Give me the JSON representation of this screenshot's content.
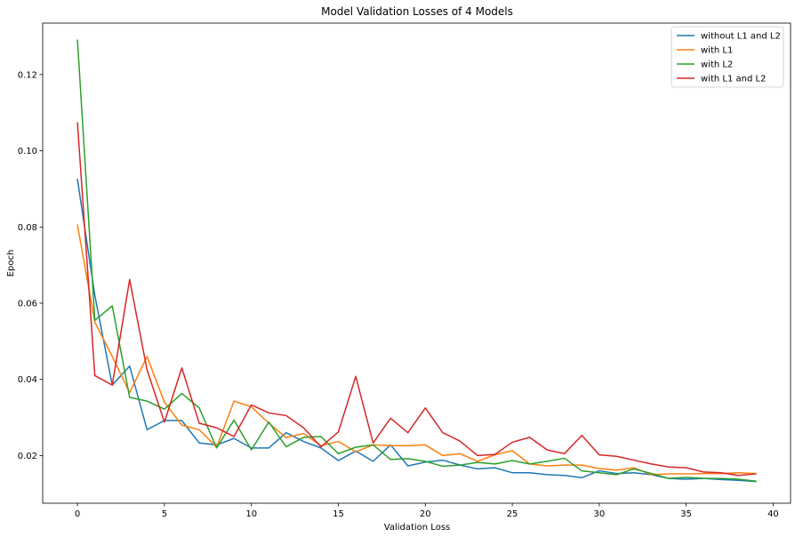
{
  "chart_data": {
    "type": "line",
    "title": "Model Validation Losses of 4 Models",
    "xlabel": "Validation Loss",
    "ylabel": "Epoch",
    "xlim": [
      -2,
      41
    ],
    "ylim": [
      0.0075,
      0.1335
    ],
    "xticks": [
      0,
      5,
      10,
      15,
      20,
      25,
      30,
      35,
      40
    ],
    "yticks": [
      0.02,
      0.04,
      0.06,
      0.08,
      0.1,
      0.12
    ],
    "ytick_labels": [
      "0.02",
      "0.04",
      "0.06",
      "0.08",
      "0.10",
      "0.12"
    ],
    "grid": false,
    "legend_position": "top-right",
    "x": [
      0,
      1,
      2,
      3,
      4,
      5,
      6,
      7,
      8,
      9,
      10,
      11,
      12,
      13,
      14,
      15,
      16,
      17,
      18,
      19,
      20,
      21,
      22,
      23,
      24,
      25,
      26,
      27,
      28,
      29,
      30,
      31,
      32,
      33,
      34,
      35,
      36,
      37,
      38,
      39
    ],
    "series": [
      {
        "name": "without L1 and L2",
        "color": "#1f77b4",
        "values": [
          0.0925,
          0.062,
          0.0385,
          0.0435,
          0.0268,
          0.0292,
          0.0292,
          0.0233,
          0.0228,
          0.0245,
          0.022,
          0.022,
          0.026,
          0.0237,
          0.022,
          0.0187,
          0.0212,
          0.0185,
          0.0228,
          0.0173,
          0.0183,
          0.0188,
          0.0175,
          0.0165,
          0.0168,
          0.0155,
          0.0155,
          0.015,
          0.0148,
          0.0142,
          0.016,
          0.0153,
          0.0155,
          0.015,
          0.014,
          0.0138,
          0.014,
          0.0137,
          0.0135,
          0.0132
        ]
      },
      {
        "name": "with L1",
        "color": "#ff7f0e",
        "values": [
          0.0805,
          0.055,
          0.046,
          0.0365,
          0.046,
          0.034,
          0.028,
          0.0268,
          0.0222,
          0.0343,
          0.0328,
          0.0285,
          0.0247,
          0.0258,
          0.0226,
          0.0237,
          0.021,
          0.0228,
          0.0226,
          0.0226,
          0.0228,
          0.02,
          0.0205,
          0.0185,
          0.0202,
          0.0213,
          0.0178,
          0.0173,
          0.0175,
          0.0175,
          0.0166,
          0.0162,
          0.0168,
          0.015,
          0.0152,
          0.0152,
          0.0153,
          0.0153,
          0.0155,
          0.0153
        ]
      },
      {
        "name": "with L2",
        "color": "#2ca02c",
        "values": [
          0.129,
          0.0555,
          0.0593,
          0.0353,
          0.0343,
          0.0322,
          0.0363,
          0.0325,
          0.022,
          0.0293,
          0.0215,
          0.0288,
          0.0223,
          0.0248,
          0.025,
          0.0205,
          0.0222,
          0.0228,
          0.019,
          0.0192,
          0.0185,
          0.0172,
          0.0175,
          0.0182,
          0.0178,
          0.0187,
          0.0178,
          0.0185,
          0.0193,
          0.016,
          0.0155,
          0.015,
          0.0165,
          0.0153,
          0.014,
          0.0143,
          0.014,
          0.014,
          0.0138,
          0.0133
        ]
      },
      {
        "name": "with L1 and L2",
        "color": "#d62728",
        "values": [
          0.1073,
          0.041,
          0.0385,
          0.0662,
          0.0425,
          0.0288,
          0.043,
          0.0285,
          0.0273,
          0.025,
          0.0333,
          0.0312,
          0.0305,
          0.0273,
          0.0223,
          0.0262,
          0.0408,
          0.0233,
          0.0298,
          0.026,
          0.0325,
          0.026,
          0.0238,
          0.02,
          0.0203,
          0.0235,
          0.0248,
          0.0215,
          0.0205,
          0.0253,
          0.0202,
          0.0198,
          0.0188,
          0.0178,
          0.017,
          0.0168,
          0.0157,
          0.0155,
          0.0148,
          0.0152
        ]
      }
    ]
  }
}
